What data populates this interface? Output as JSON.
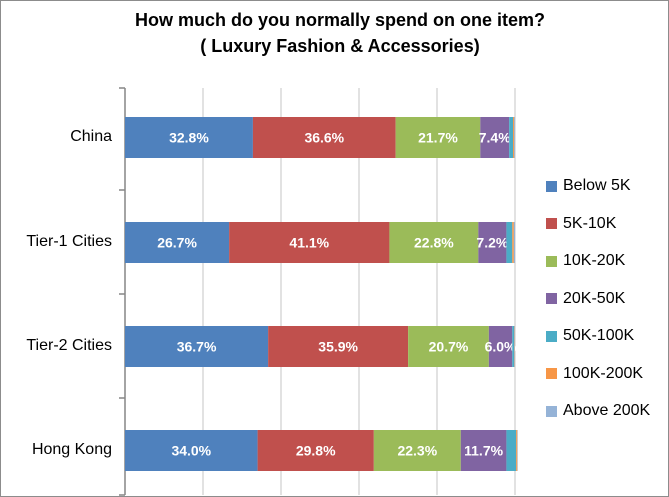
{
  "chart_data": {
    "type": "bar",
    "orientation": "horizontal",
    "stacked": true,
    "title": "How much do you normally spend on one item?",
    "subtitle": "( Luxury Fashion & Accessories)",
    "categories": [
      "China",
      "Tier-1 Cities",
      "Tier-2 Cities",
      "Hong Kong"
    ],
    "series": [
      {
        "name": "Below 5K",
        "color": "#4f81bd",
        "values": [
          32.8,
          26.7,
          36.7,
          34.0
        ],
        "labels": [
          "32.8%",
          "26.7%",
          "36.7%",
          "34.0%"
        ]
      },
      {
        "name": "5K-10K",
        "color": "#c0504d",
        "values": [
          36.6,
          41.1,
          35.9,
          29.8
        ],
        "labels": [
          "36.6%",
          "41.1%",
          "35.9%",
          "29.8%"
        ]
      },
      {
        "name": "10K-20K",
        "color": "#9bbb59",
        "values": [
          21.7,
          22.8,
          20.7,
          22.3
        ],
        "labels": [
          "21.7%",
          "22.8%",
          "20.7%",
          "22.3%"
        ]
      },
      {
        "name": "20K-50K",
        "color": "#8064a2",
        "values": [
          7.4,
          7.2,
          6.0,
          11.7
        ],
        "labels": [
          "7.4%",
          "7.2%",
          "6.0%",
          "11.7%"
        ]
      },
      {
        "name": "50K-100K",
        "color": "#4bacc6",
        "values": [
          1.0,
          1.5,
          0.5,
          2.5
        ],
        "labels": [
          "",
          "",
          "",
          ""
        ]
      },
      {
        "name": "100K-200K",
        "color": "#f79646",
        "values": [
          0.3,
          0.4,
          0.1,
          0.3
        ],
        "labels": [
          "",
          "",
          "",
          ""
        ]
      },
      {
        "name": "Above 200K",
        "color": "#95b3d7",
        "values": [
          0.2,
          0.3,
          0.1,
          0.1
        ],
        "labels": [
          "",
          "",
          "",
          ""
        ]
      }
    ],
    "xlim": [
      0,
      100
    ],
    "grid": true,
    "legend_position": "right"
  }
}
